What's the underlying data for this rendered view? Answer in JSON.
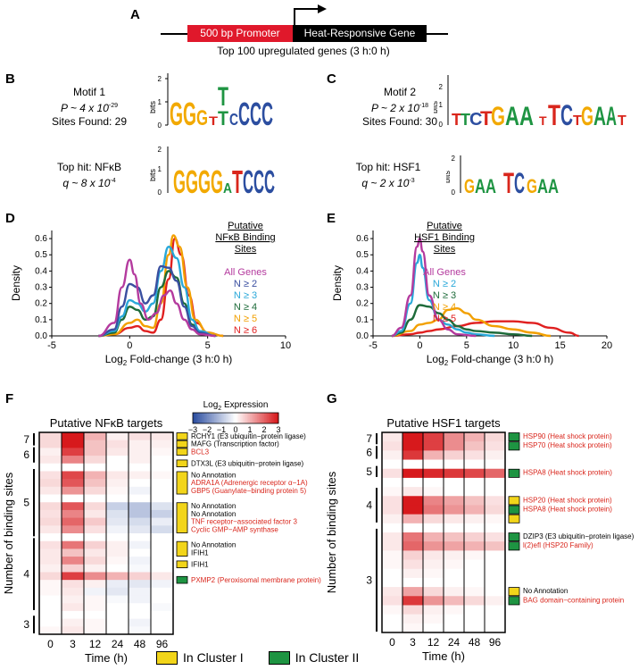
{
  "panels": {
    "A": "A",
    "B": "B",
    "C": "C",
    "D": "D",
    "E": "E",
    "F": "F",
    "G": "G"
  },
  "panelA": {
    "promoter_label": "500 bp Promoter",
    "gene_label": "Heat-Responsive Gene",
    "caption": "Top 100 upregulated genes (3 h:0 h)"
  },
  "panelB": {
    "motif_title": "Motif 1",
    "p_value": "P ~ 4 x 10",
    "p_exp": "-29",
    "sites": "Sites Found: 29",
    "tophit": "Top hit: NFκB",
    "q_value": "q ~ 8 x 10",
    "q_exp": "-4",
    "axis_label": "bits"
  },
  "panelC": {
    "motif_title": "Motif 2",
    "p_value": "P ~ 2 x 10",
    "p_exp": "-18",
    "sites": "Sites Found: 30",
    "tophit": "Top hit: HSF1",
    "q_value": "q ~ 2 x 10",
    "q_exp": "-3",
    "axis_label": "bits"
  },
  "chart_data": [
    {
      "type": "line",
      "panel": "D",
      "xlabel": "Log2 Fold-change (3 h:0 h)",
      "ylabel": "Density",
      "xlim": [
        -5,
        10
      ],
      "ylim": [
        0,
        0.65
      ],
      "x_ticks": [
        -5,
        0,
        5,
        10
      ],
      "y_ticks": [
        0.0,
        0.1,
        0.2,
        0.3,
        0.4,
        0.5,
        0.6
      ],
      "legend_title": "Putative NFκB Binding Sites",
      "series": [
        {
          "name": "All Genes",
          "color": "#b43a9e",
          "x": [
            -2,
            -1,
            -0.5,
            0,
            0.3,
            0.7,
            1.2,
            1.7,
            2.2,
            2.6,
            3,
            3.5,
            4,
            4.5,
            5.5
          ],
          "y": [
            0,
            0.08,
            0.3,
            0.47,
            0.38,
            0.2,
            0.1,
            0.14,
            0.25,
            0.28,
            0.2,
            0.1,
            0.04,
            0.01,
            0
          ]
        },
        {
          "name": "N ≥ 2",
          "color": "#3a4fa0",
          "x": [
            -2,
            -1,
            -0.5,
            0,
            0.5,
            1,
            1.5,
            2,
            2.5,
            3,
            3.5,
            4,
            4.5,
            5.5
          ],
          "y": [
            0,
            0.04,
            0.18,
            0.32,
            0.3,
            0.2,
            0.25,
            0.43,
            0.42,
            0.34,
            0.18,
            0.06,
            0.02,
            0
          ]
        },
        {
          "name": "N ≥ 3",
          "color": "#29a8d9",
          "x": [
            -2,
            -1,
            -0.5,
            0,
            0.5,
            1,
            1.5,
            2,
            2.5,
            3,
            3.5,
            4,
            4.5,
            5.5
          ],
          "y": [
            0,
            0.03,
            0.12,
            0.22,
            0.2,
            0.15,
            0.2,
            0.4,
            0.55,
            0.48,
            0.3,
            0.1,
            0.03,
            0
          ]
        },
        {
          "name": "N ≥ 4",
          "color": "#1e6b3a",
          "x": [
            -2,
            -1,
            -0.5,
            0,
            0.5,
            1,
            1.5,
            2,
            2.5,
            3,
            3.5,
            4,
            4.5,
            5.5
          ],
          "y": [
            0,
            0.02,
            0.1,
            0.18,
            0.16,
            0.1,
            0.12,
            0.3,
            0.4,
            0.36,
            0.2,
            0.07,
            0.02,
            0
          ]
        },
        {
          "name": "N ≥ 5",
          "color": "#f2a000",
          "x": [
            -2,
            -1,
            0,
            0.5,
            1,
            1.5,
            2,
            2.5,
            2.8,
            3.2,
            3.7,
            4.2,
            5,
            6
          ],
          "y": [
            0,
            0.01,
            0.08,
            0.1,
            0.06,
            0.05,
            0.2,
            0.5,
            0.62,
            0.55,
            0.3,
            0.1,
            0.02,
            0
          ]
        },
        {
          "name": "N ≥ 6",
          "color": "#e02020",
          "x": [
            -2,
            -1,
            0,
            0.5,
            1,
            1.5,
            2,
            2.5,
            2.9,
            3.3,
            3.8,
            4.3,
            5,
            6
          ],
          "y": [
            0,
            0.01,
            0.05,
            0.06,
            0.03,
            0.02,
            0.1,
            0.35,
            0.6,
            0.5,
            0.25,
            0.08,
            0.02,
            0
          ]
        }
      ]
    },
    {
      "type": "line",
      "panel": "E",
      "xlabel": "Log2 Fold-change (3 h:0 h)",
      "ylabel": "Density",
      "xlim": [
        -5,
        20
      ],
      "ylim": [
        0,
        0.65
      ],
      "x_ticks": [
        -5,
        0,
        5,
        10,
        15,
        20
      ],
      "y_ticks": [
        0.0,
        0.1,
        0.2,
        0.3,
        0.4,
        0.5,
        0.6
      ],
      "legend_title": "Putative HSF1 Binding Sites",
      "series": [
        {
          "name": "All Genes",
          "color": "#b43a9e",
          "x": [
            -3,
            -2,
            -1,
            -0.3,
            0,
            0.3,
            1,
            2,
            3,
            4,
            6
          ],
          "y": [
            0,
            0.05,
            0.25,
            0.55,
            0.6,
            0.52,
            0.25,
            0.1,
            0.04,
            0.01,
            0
          ]
        },
        {
          "name": "N ≥ 2",
          "color": "#29a8d9",
          "x": [
            -3,
            -2,
            -1,
            -0.3,
            0,
            0.3,
            1,
            2,
            3,
            4,
            5,
            6,
            8
          ],
          "y": [
            0,
            0.03,
            0.2,
            0.45,
            0.5,
            0.42,
            0.22,
            0.1,
            0.07,
            0.04,
            0.02,
            0.01,
            0
          ]
        },
        {
          "name": "N ≥ 3",
          "color": "#1e6b3a",
          "x": [
            -3,
            -2,
            -1,
            0,
            1,
            2,
            3,
            4,
            5,
            6,
            8,
            10,
            12
          ],
          "y": [
            0,
            0.02,
            0.1,
            0.19,
            0.18,
            0.14,
            0.1,
            0.06,
            0.04,
            0.03,
            0.02,
            0.01,
            0
          ]
        },
        {
          "name": "N ≥ 4",
          "color": "#f2a000",
          "x": [
            -3,
            -1,
            0,
            1,
            2,
            3,
            4,
            5,
            6,
            8,
            10,
            12,
            14
          ],
          "y": [
            0,
            0.03,
            0.07,
            0.08,
            0.1,
            0.16,
            0.17,
            0.14,
            0.1,
            0.06,
            0.04,
            0.02,
            0
          ]
        },
        {
          "name": "N ≥ 5",
          "color": "#e02020",
          "x": [
            -3,
            -1,
            0,
            1,
            2,
            4,
            6,
            8,
            10,
            12,
            14,
            16,
            17
          ],
          "y": [
            0,
            0.01,
            0.02,
            0.03,
            0.04,
            0.06,
            0.08,
            0.09,
            0.09,
            0.08,
            0.05,
            0.02,
            0
          ]
        }
      ]
    },
    {
      "type": "heatmap",
      "panel": "F",
      "title": "Putative NFκB targets",
      "xlabel": "Time (h)",
      "ylabel": "Number of binding sites",
      "x_ticks": [
        "0",
        "3",
        "12",
        "24",
        "48",
        "96"
      ],
      "y_groups": [
        "7",
        "6",
        "5",
        "4",
        "3"
      ],
      "color_scale": {
        "title": "Log2 Expression",
        "ticks": [
          "−3",
          "−2",
          "−1",
          "0",
          "1",
          "2",
          "3"
        ],
        "min": -3,
        "max": 3
      },
      "legend": {
        "cluster1": "In Cluster I",
        "cluster2": "In Cluster II"
      }
    },
    {
      "type": "heatmap",
      "panel": "G",
      "title": "Putative HSF1 targets",
      "xlabel": "Time (h)",
      "ylabel": "Number of binding sites",
      "x_ticks": [
        "0",
        "3",
        "12",
        "24",
        "48",
        "96"
      ],
      "y_groups": [
        "7",
        "6",
        "5",
        "4",
        "3"
      ]
    }
  ],
  "heatF": {
    "labels": [
      {
        "text": "RCHY1 (E3 ubiquitin−protein ligase)",
        "red": false
      },
      {
        "text": "MAFG  (Transcription factor)",
        "red": false
      },
      {
        "text": "BCL3",
        "red": true
      },
      {
        "text": "DTX3L  (E3 ubiquitin−protein ligase)",
        "red": false
      },
      {
        "text": "No Annotation",
        "red": false
      },
      {
        "text": "ADRA1A (Adrenergic receptor α−1A)",
        "red": true
      },
      {
        "text": "GBP5  (Guanylate−binding protein 5)",
        "red": true
      },
      {
        "text": "No Annotation",
        "red": false
      },
      {
        "text": "No Annotation",
        "red": false
      },
      {
        "text": "TNF receptor−associated factor 3",
        "red": true
      },
      {
        "text": "Cyclic GMP−AMP synthase",
        "red": true
      },
      {
        "text": "No Annotation",
        "red": false
      },
      {
        "text": "IFIH1",
        "red": false
      },
      {
        "text": "IFIH1",
        "red": false
      },
      {
        "text": "PXMP2 (Peroxisomal membrane protein)",
        "red": true
      }
    ]
  },
  "heatG": {
    "labels": [
      {
        "text": "HSP90 (Heat shock protein)",
        "red": true
      },
      {
        "text": "HSP70 (Heat shock protein)",
        "red": true
      },
      {
        "text": "HSPA8 (Heat shock protein)",
        "red": true
      },
      {
        "text": "HSP20 (Heat shock protein)",
        "red": true
      },
      {
        "text": "HSPA8 (Heat shock protein)",
        "red": true
      },
      {
        "text": "DZIP3 (E3 ubiquitin−protein ligase)",
        "red": false
      },
      {
        "text": "l(2)efl  (HSP20 Family)",
        "red": true
      },
      {
        "text": "No Annotation",
        "red": false
      },
      {
        "text": "BAG domain−containing protein",
        "red": true
      }
    ]
  },
  "colors": {
    "cluster1": "#f2d51a",
    "cluster2": "#1e9442",
    "high": "#d7191c",
    "low": "#2c4ea0"
  }
}
